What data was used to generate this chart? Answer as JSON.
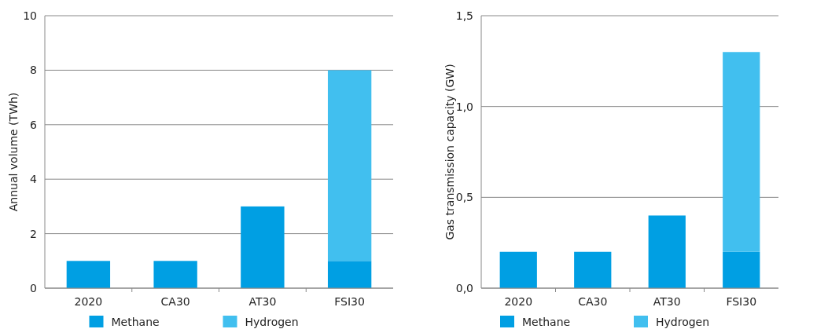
{
  "chart_data": [
    {
      "type": "bar",
      "stacked": true,
      "ylabel": "Annual volume (TWh)",
      "categories": [
        "2020",
        "CA30",
        "AT30",
        "FSI30"
      ],
      "series": [
        {
          "name": "Methane",
          "color": "#009fe3",
          "values": [
            1,
            1,
            3,
            1
          ]
        },
        {
          "name": "Hydrogen",
          "color": "#41bfef",
          "values": [
            null,
            null,
            null,
            7
          ]
        }
      ],
      "ylim": [
        0,
        10
      ],
      "yticks": [
        0,
        2,
        4,
        6,
        8,
        10
      ],
      "grid": "y",
      "legend": "bottom"
    },
    {
      "type": "bar",
      "stacked": true,
      "ylabel": "Gas transmission capacity (GW)",
      "categories": [
        "2020",
        "CA30",
        "AT30",
        "FSI30"
      ],
      "series": [
        {
          "name": "Methane",
          "color": "#009fe3",
          "values": [
            0.2,
            0.2,
            0.4,
            0.2
          ]
        },
        {
          "name": "Hydrogen",
          "color": "#41bfef",
          "values": [
            null,
            null,
            null,
            1.1
          ]
        }
      ],
      "ylim": [
        0,
        1.5
      ],
      "yticks": [
        {
          "value": 0,
          "label": "0,0"
        },
        {
          "value": 0.5,
          "label": "0,5"
        },
        {
          "value": 1,
          "label": "1,0"
        },
        {
          "value": 1.5,
          "label": "1,5"
        }
      ],
      "grid": "y",
      "legend": "bottom"
    }
  ]
}
